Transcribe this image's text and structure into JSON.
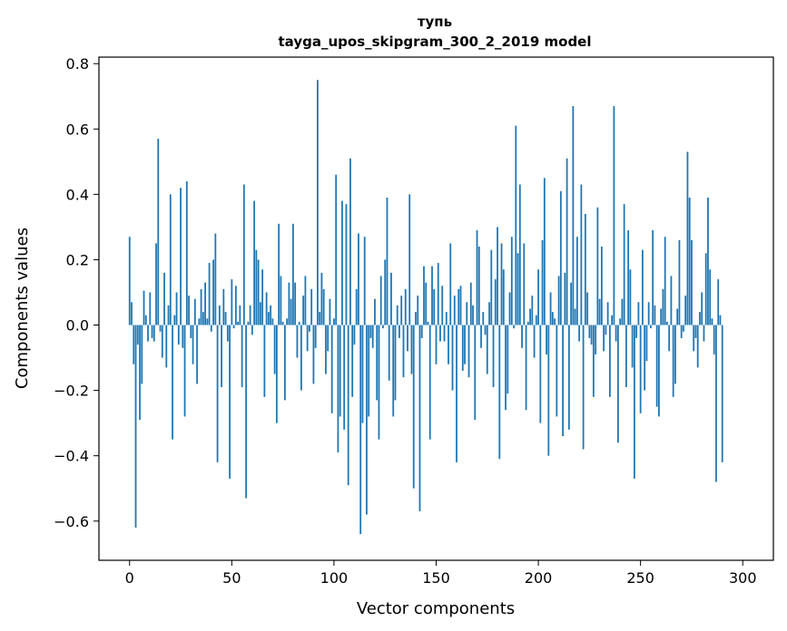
{
  "chart_data": {
    "type": "bar",
    "title_lines": [
      "тупь",
      "tayga_upos_skipgram_300_2_2019 model"
    ],
    "xlabel": "Vector components",
    "ylabel": "Components values",
    "xlim": [
      -15,
      315
    ],
    "ylim": [
      -0.72,
      0.82
    ],
    "xticks": [
      0,
      50,
      100,
      150,
      200,
      250,
      300
    ],
    "xtick_labels": [
      "0",
      "50",
      "100",
      "150",
      "200",
      "250",
      "300"
    ],
    "yticks": [
      -0.6,
      -0.4,
      -0.2,
      0.0,
      0.2,
      0.4,
      0.6,
      0.8
    ],
    "ytick_labels": [
      "−0.6",
      "−0.4",
      "−0.2",
      "0.0",
      "0.2",
      "0.4",
      "0.6",
      "0.8"
    ],
    "bar_color": "#1f77b4",
    "values": [
      0.27,
      0.07,
      -0.12,
      -0.62,
      -0.06,
      -0.29,
      -0.18,
      0.105,
      0.03,
      -0.05,
      0.1,
      -0.04,
      -0.05,
      0.25,
      0.57,
      -0.02,
      -0.1,
      0.16,
      -0.13,
      0.06,
      0.4,
      -0.35,
      0.03,
      0.1,
      -0.06,
      0.42,
      -0.07,
      -0.28,
      0.44,
      0.09,
      -0.04,
      -0.12,
      0.08,
      -0.18,
      0.02,
      0.11,
      0.04,
      0.13,
      0.02,
      0.19,
      -0.02,
      0.2,
      0.28,
      -0.42,
      0.06,
      -0.19,
      0.11,
      0.04,
      -0.05,
      -0.47,
      0.14,
      -0.01,
      0.12,
      0.01,
      0.06,
      -0.19,
      0.43,
      -0.53,
      0.01,
      0.06,
      -0.03,
      0.38,
      0.23,
      0.2,
      0.07,
      0.17,
      -0.22,
      0.1,
      0.04,
      0.06,
      0.02,
      -0.15,
      -0.3,
      0.31,
      0.15,
      0.01,
      -0.23,
      0.02,
      0.13,
      0.08,
      0.31,
      0.13,
      -0.1,
      0.01,
      -0.2,
      0.09,
      0.15,
      -0.08,
      -0.02,
      0.11,
      -0.18,
      -0.07,
      0.75,
      0.04,
      0.16,
      0.11,
      -0.15,
      -0.08,
      0.08,
      -0.27,
      0.02,
      0.46,
      -0.39,
      -0.28,
      0.38,
      -0.32,
      0.37,
      -0.49,
      0.51,
      -0.22,
      -0.06,
      0.11,
      0.28,
      -0.64,
      -0.3,
      0.27,
      -0.58,
      -0.28,
      -0.04,
      -0.07,
      0.08,
      -0.23,
      -0.35,
      0.15,
      -0.01,
      0.2,
      0.39,
      -0.17,
      0.16,
      -0.28,
      -0.23,
      0.06,
      -0.04,
      0.09,
      -0.16,
      0.11,
      -0.08,
      0.4,
      -0.15,
      -0.5,
      0.04,
      0.09,
      -0.57,
      -0.04,
      0.18,
      0.13,
      0.01,
      -0.35,
      0.18,
      0.11,
      -0.12,
      0.19,
      -0.05,
      0.12,
      -0.05,
      0.04,
      -0.12,
      0.25,
      -0.2,
      0.09,
      -0.42,
      0.11,
      0.12,
      -0.14,
      -0.12,
      0.07,
      -0.16,
      0.13,
      0.06,
      -0.29,
      0.29,
      0.24,
      -0.07,
      0.04,
      -0.03,
      -0.15,
      0.07,
      0.23,
      -0.19,
      0.14,
      0.3,
      -0.41,
      0.25,
      0.17,
      -0.26,
      -0.21,
      0.1,
      0.27,
      -0.01,
      0.61,
      0.22,
      0.43,
      -0.07,
      0.25,
      -0.26,
      0.01,
      0.05,
      0.09,
      -0.1,
      0.03,
      0.17,
      -0.3,
      0.26,
      0.45,
      -0.09,
      -0.4,
      0.1,
      0.04,
      0.02,
      -0.28,
      0.15,
      0.41,
      -0.34,
      0.16,
      0.51,
      -0.32,
      0.13,
      0.67,
      0.05,
      0.27,
      -0.05,
      0.43,
      -0.38,
      0.34,
      0.1,
      -0.04,
      -0.06,
      -0.22,
      -0.09,
      0.36,
      0.08,
      0.24,
      -0.08,
      -0.03,
      0.07,
      -0.22,
      0.03,
      0.67,
      -0.05,
      -0.36,
      0.02,
      0.08,
      0.37,
      -0.19,
      0.29,
      0.17,
      -0.13,
      -0.47,
      -0.04,
      0.07,
      -0.27,
      0.23,
      -0.2,
      -0.11,
      0.07,
      -0.01,
      0.29,
      0.06,
      -0.25,
      -0.28,
      0.05,
      0.11,
      0.27,
      0.01,
      -0.08,
      0.15,
      -0.22,
      -0.18,
      0.05,
      0.26,
      -0.04,
      -0.02,
      0.09,
      0.53,
      0.39,
      0.26,
      -0.08,
      -0.04,
      -0.13,
      0.04,
      0.1,
      -0.05,
      0.22,
      0.39,
      0.17,
      0.02,
      -0.09,
      -0.48,
      0.14,
      0.03,
      -0.42
    ]
  }
}
